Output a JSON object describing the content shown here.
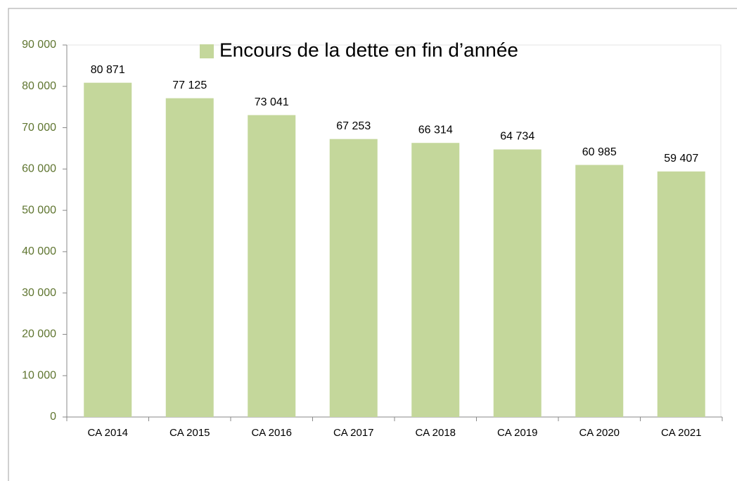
{
  "chart_data": {
    "type": "bar",
    "categories": [
      "CA 2014",
      "CA 2015",
      "CA 2016",
      "CA 2017",
      "CA 2018",
      "CA 2019",
      "CA 2020",
      "CA 2021"
    ],
    "series": [
      {
        "name": "Encours de la dette en fin d’année",
        "color": "#c4d79b",
        "values": [
          80871,
          77125,
          73041,
          67253,
          66314,
          64734,
          60985,
          59407
        ],
        "value_labels": [
          "80 871",
          "77 125",
          "73 041",
          "67 253",
          "66 314",
          "64 734",
          "60 985",
          "59 407"
        ]
      }
    ],
    "ylim": [
      0,
      90000
    ],
    "yticks": [
      0,
      {
        "value": 10000,
        "label": "10 000"
      },
      {
        "value": 20000,
        "label": "20 000"
      },
      {
        "value": 30000,
        "label": "30 000"
      },
      {
        "value": 40000,
        "label": "40 000"
      },
      {
        "value": 50000,
        "label": "50 000"
      },
      {
        "value": 60000,
        "label": "60 000"
      },
      {
        "value": 70000,
        "label": "70 000"
      },
      {
        "value": 80000,
        "label": "80 000"
      },
      {
        "value": 90000,
        "label": "90 000"
      }
    ],
    "grid": false,
    "legend": "top"
  }
}
